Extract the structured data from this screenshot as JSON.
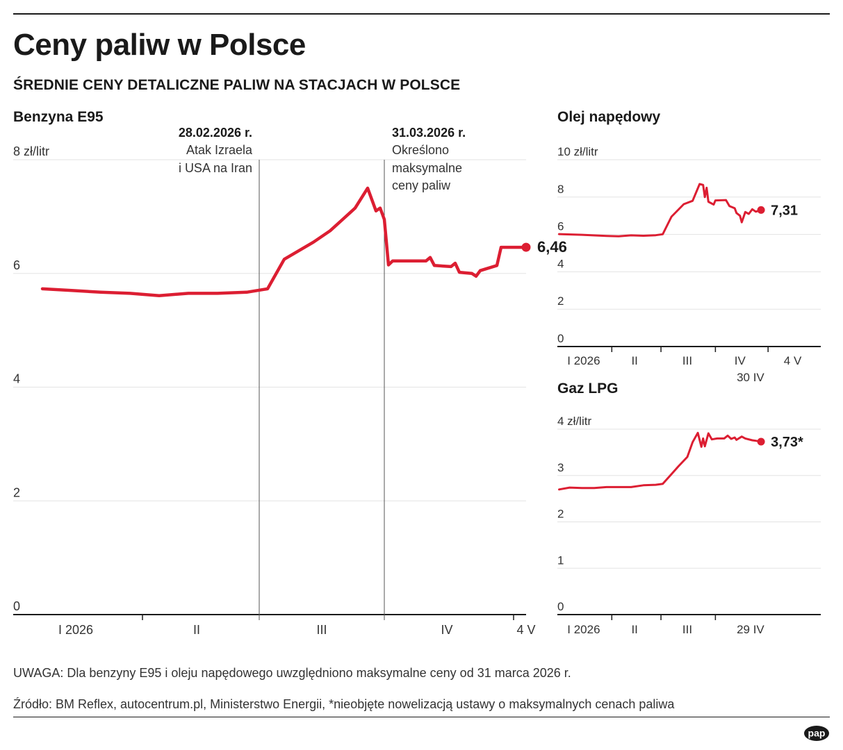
{
  "header": {
    "title": "Ceny paliw w Polsce",
    "subtitle": "ŚREDNIE CENY DETALICZNE PALIW NA STACJACH W POLSCE"
  },
  "footer": {
    "note": "UWAGA: Dla benzyny E95 i oleju napędowego uwzględniono maksymalne ceny od 31 marca 2026 r.",
    "source": "Źródło: BM Reflex, autocentrum.pl, Ministerstwo Energii, *nieobjęte nowelizacją ustawy o maksymalnych cenach paliwa",
    "logo_text": "pap"
  },
  "colors": {
    "series": "#dc1e32",
    "grid": "#e3e3e3",
    "axis": "#1a1a1a",
    "text": "#1a1a1a"
  },
  "chart_data": [
    {
      "type": "line",
      "title": "Benzyna E95",
      "yunit": "zł/litr",
      "ylim": [
        0,
        8
      ],
      "yticks": [
        0,
        2,
        4,
        6,
        8
      ],
      "ytick_labels": [
        "0",
        "2",
        "4",
        "6",
        "8 zł/litr"
      ],
      "xlim": [
        "2026-01-01",
        "2026-05-04"
      ],
      "xticks": [
        {
          "label": "I 2026",
          "x": "2026-01-16"
        },
        {
          "label": "II",
          "x": "2026-02-14"
        },
        {
          "label": "III",
          "x": "2026-03-16"
        },
        {
          "label": "IV",
          "x": "2026-04-15"
        },
        {
          "label": "4 V",
          "x": "2026-05-04"
        }
      ],
      "xseparators": [
        "2026-02-01",
        "2026-03-01",
        "2026-04-01",
        "2026-05-01"
      ],
      "grid": true,
      "series": [
        {
          "points": [
            [
              "2026-01-08",
              5.73
            ],
            [
              "2026-01-15",
              5.7
            ],
            [
              "2026-01-22",
              5.67
            ],
            [
              "2026-01-29",
              5.65
            ],
            [
              "2026-02-05",
              5.61
            ],
            [
              "2026-02-12",
              5.65
            ],
            [
              "2026-02-19",
              5.65
            ],
            [
              "2026-02-26",
              5.67
            ],
            [
              "2026-03-03",
              5.73
            ],
            [
              "2026-03-07",
              6.25
            ],
            [
              "2026-03-14",
              6.55
            ],
            [
              "2026-03-18",
              6.75
            ],
            [
              "2026-03-21",
              6.95
            ],
            [
              "2026-03-24",
              7.15
            ],
            [
              "2026-03-27",
              7.5
            ],
            [
              "2026-03-29",
              7.1
            ],
            [
              "2026-03-30",
              7.15
            ],
            [
              "2026-03-31",
              6.95
            ],
            [
              "2026-04-01",
              6.15
            ],
            [
              "2026-04-02",
              6.22
            ],
            [
              "2026-04-10",
              6.22
            ],
            [
              "2026-04-11",
              6.28
            ],
            [
              "2026-04-12",
              6.14
            ],
            [
              "2026-04-16",
              6.12
            ],
            [
              "2026-04-17",
              6.18
            ],
            [
              "2026-04-18",
              6.02
            ],
            [
              "2026-04-21",
              6.0
            ],
            [
              "2026-04-22",
              5.95
            ],
            [
              "2026-04-23",
              6.05
            ],
            [
              "2026-04-27",
              6.14
            ],
            [
              "2026-04-28",
              6.46
            ],
            [
              "2026-05-04",
              6.46
            ]
          ]
        }
      ],
      "end_label": "6,46",
      "annotations": [
        {
          "x": "2026-03-01",
          "date": "28.02.2026 r.",
          "line1": "Atak Izraela",
          "line2": "i USA na Iran",
          "line3": ""
        },
        {
          "x": "2026-03-31",
          "date": "31.03.2026 r.",
          "line1": "Określono",
          "line2": "maksymalne",
          "line3": "ceny paliw"
        }
      ]
    },
    {
      "type": "line",
      "title": "Olej napędowy",
      "yunit": "zł/litr",
      "ylim": [
        0,
        10
      ],
      "yticks": [
        0,
        2,
        4,
        6,
        8,
        10
      ],
      "ytick_labels": [
        "0",
        "2",
        "4",
        "6",
        "8",
        "10 zł/litr"
      ],
      "xlim": [
        "2026-01-01",
        "2026-05-31"
      ],
      "xticks": [
        {
          "label": "I 2026",
          "x": "2026-01-16"
        },
        {
          "label": "II",
          "x": "2026-02-14"
        },
        {
          "label": "III",
          "x": "2026-03-16"
        },
        {
          "label": "IV",
          "x": "2026-04-15"
        },
        {
          "label": "4 V",
          "x": "2026-05-15"
        }
      ],
      "xtick_sublabels": [
        {
          "label": "30 IV",
          "x": "2026-04-21"
        }
      ],
      "xseparators": [
        "2026-02-01",
        "2026-03-01",
        "2026-04-01",
        "2026-05-01"
      ],
      "grid": true,
      "series": [
        {
          "points": [
            [
              "2026-01-02",
              6.02
            ],
            [
              "2026-01-15",
              5.98
            ],
            [
              "2026-01-29",
              5.92
            ],
            [
              "2026-02-05",
              5.9
            ],
            [
              "2026-02-12",
              5.95
            ],
            [
              "2026-02-19",
              5.93
            ],
            [
              "2026-02-26",
              5.96
            ],
            [
              "2026-03-02",
              6.01
            ],
            [
              "2026-03-07",
              6.95
            ],
            [
              "2026-03-14",
              7.62
            ],
            [
              "2026-03-19",
              7.8
            ],
            [
              "2026-03-23",
              8.7
            ],
            [
              "2026-03-25",
              8.65
            ],
            [
              "2026-03-26",
              8.0
            ],
            [
              "2026-03-27",
              8.5
            ],
            [
              "2026-03-28",
              7.75
            ],
            [
              "2026-03-31",
              7.6
            ],
            [
              "2026-04-01",
              7.82
            ],
            [
              "2026-04-07",
              7.84
            ],
            [
              "2026-04-09",
              7.52
            ],
            [
              "2026-04-12",
              7.4
            ],
            [
              "2026-04-13",
              7.15
            ],
            [
              "2026-04-15",
              7.0
            ],
            [
              "2026-04-16",
              6.65
            ],
            [
              "2026-04-18",
              7.2
            ],
            [
              "2026-04-20",
              7.1
            ],
            [
              "2026-04-22",
              7.35
            ],
            [
              "2026-04-24",
              7.22
            ],
            [
              "2026-04-27",
              7.31
            ]
          ]
        }
      ],
      "end_label": "7,31"
    },
    {
      "type": "line",
      "title": "Gaz LPG",
      "yunit": "zł/litr",
      "ylim": [
        0,
        4
      ],
      "yticks": [
        0,
        1,
        2,
        3,
        4
      ],
      "ytick_labels": [
        "0",
        "1",
        "2",
        "3",
        "4 zł/litr"
      ],
      "xlim": [
        "2026-01-01",
        "2026-05-31"
      ],
      "xticks": [
        {
          "label": "I 2026",
          "x": "2026-01-16"
        },
        {
          "label": "II",
          "x": "2026-02-14"
        },
        {
          "label": "III",
          "x": "2026-03-16"
        },
        {
          "label": "29 IV",
          "x": "2026-04-21"
        }
      ],
      "xseparators": [
        "2026-02-01",
        "2026-03-01",
        "2026-04-01"
      ],
      "grid": true,
      "series": [
        {
          "points": [
            [
              "2026-01-02",
              2.7
            ],
            [
              "2026-01-08",
              2.74
            ],
            [
              "2026-01-15",
              2.73
            ],
            [
              "2026-01-22",
              2.73
            ],
            [
              "2026-01-29",
              2.75
            ],
            [
              "2026-02-05",
              2.75
            ],
            [
              "2026-02-12",
              2.75
            ],
            [
              "2026-02-19",
              2.79
            ],
            [
              "2026-02-26",
              2.8
            ],
            [
              "2026-03-02",
              2.82
            ],
            [
              "2026-03-07",
              3.03
            ],
            [
              "2026-03-11",
              3.2
            ],
            [
              "2026-03-16",
              3.4
            ],
            [
              "2026-03-19",
              3.72
            ],
            [
              "2026-03-22",
              3.92
            ],
            [
              "2026-03-24",
              3.62
            ],
            [
              "2026-03-25",
              3.8
            ],
            [
              "2026-03-26",
              3.63
            ],
            [
              "2026-03-28",
              3.91
            ],
            [
              "2026-03-30",
              3.78
            ],
            [
              "2026-04-02",
              3.8
            ],
            [
              "2026-04-06",
              3.8
            ],
            [
              "2026-04-08",
              3.86
            ],
            [
              "2026-04-10",
              3.79
            ],
            [
              "2026-04-12",
              3.82
            ],
            [
              "2026-04-13",
              3.77
            ],
            [
              "2026-04-16",
              3.84
            ],
            [
              "2026-04-18",
              3.8
            ],
            [
              "2026-04-22",
              3.76
            ],
            [
              "2026-04-24",
              3.75
            ],
            [
              "2026-04-27",
              3.73
            ]
          ]
        }
      ],
      "end_label": "3,73*"
    }
  ]
}
